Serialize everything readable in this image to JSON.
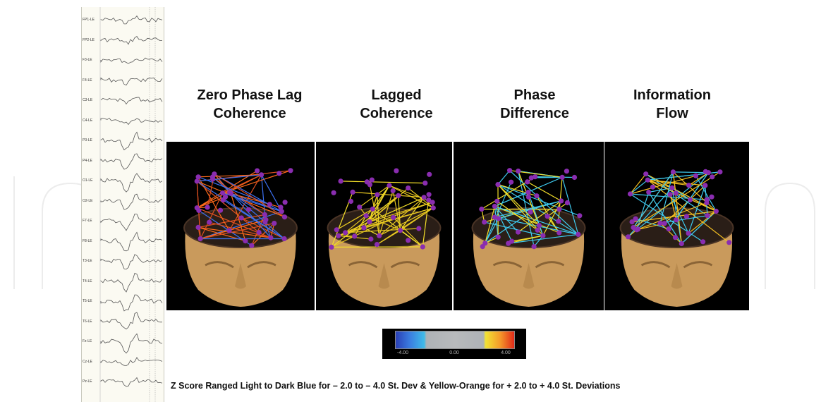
{
  "eeg": {
    "channels": [
      "FP1-LE",
      "FP2-LE",
      "F3-LE",
      "F4-LE",
      "C3-LE",
      "C4-LE",
      "P3-LE",
      "P4-LE",
      "O1-LE",
      "O2-LE",
      "F7-LE",
      "F8-LE",
      "T3-LE",
      "T4-LE",
      "T5-LE",
      "T6-LE",
      "Fz-LE",
      "Cz-LE",
      "Pz-LE"
    ]
  },
  "panels": [
    {
      "title_line1": "Zero Phase Lag",
      "title_line2": "Coherence",
      "line_colors": [
        "#ff6a1a",
        "#3b6ff0",
        "#e05020"
      ]
    },
    {
      "title_line1": "Lagged",
      "title_line2": "Coherence",
      "line_colors": [
        "#f5e02a",
        "#e8c820"
      ]
    },
    {
      "title_line1": "Phase",
      "title_line2": "Difference",
      "line_colors": [
        "#3ecbf0",
        "#f5e02a"
      ]
    },
    {
      "title_line1": "Information",
      "title_line2": "Flow",
      "line_colors": [
        "#3ecbf0",
        "#f5c020"
      ]
    }
  ],
  "colorbar": {
    "min_label": "-4.00",
    "mid_label": "0.00",
    "max_label": "4.00"
  },
  "caption": "Z Score Ranged Light to Dark Blue for – 2.0 to – 4.0 St. Dev & Yellow-Orange for + 2.0 to + 4.0 St. Deviations",
  "colors": {
    "node": "#8a2db0",
    "skin": "#c99a5c",
    "scalp": "#2a1e17"
  }
}
